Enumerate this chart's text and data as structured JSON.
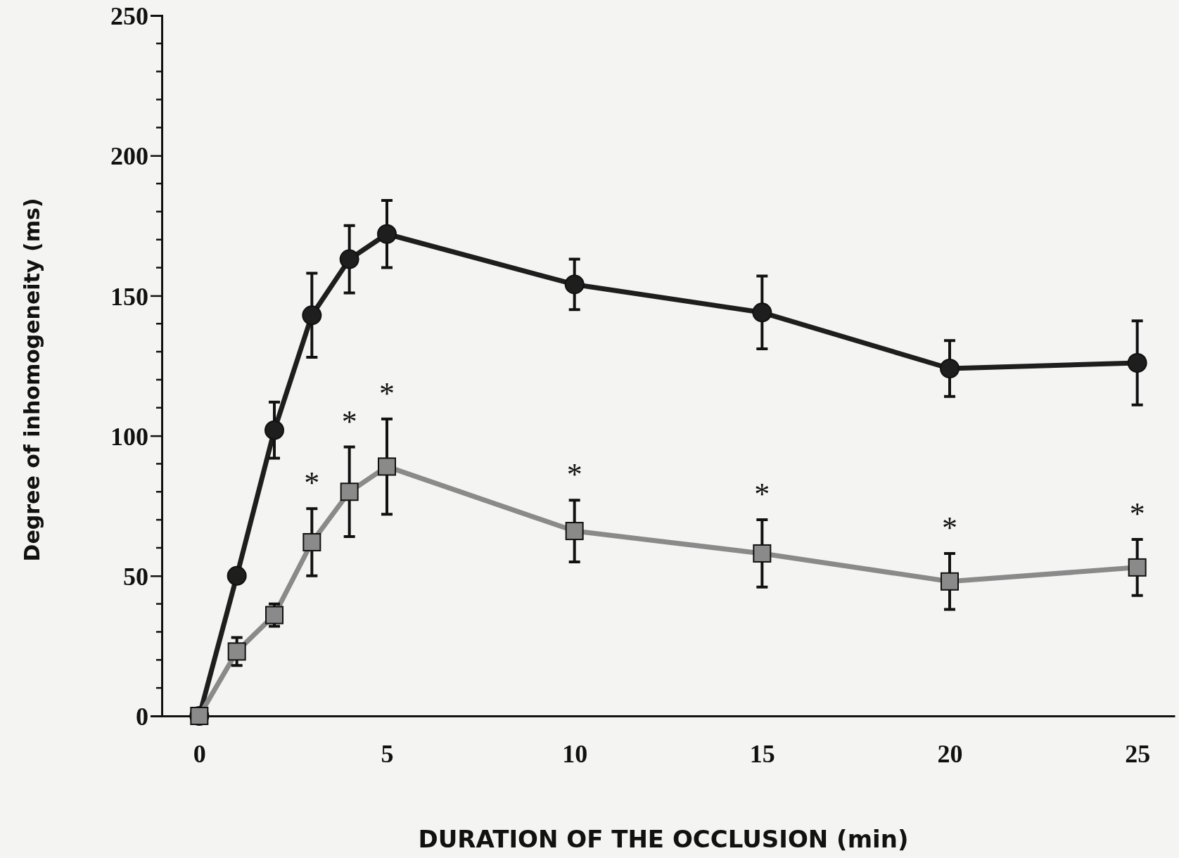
{
  "chart_data": {
    "type": "line",
    "xlabel": "DURATION OF THE OCCLUSION (min)",
    "ylabel": "Degree of inhomogeneity (ms)",
    "x": [
      0,
      1,
      2,
      3,
      4,
      5,
      10,
      15,
      20,
      25
    ],
    "series": [
      {
        "color": "#1e1e1e",
        "marker": "circle",
        "values": [
          0,
          50,
          102,
          143,
          163,
          172,
          154,
          144,
          124,
          126
        ],
        "errors": [
          null,
          null,
          10,
          15,
          12,
          12,
          9,
          13,
          10,
          15
        ]
      },
      {
        "color": "#8a8a8a",
        "marker": "square",
        "values": [
          0,
          23,
          36,
          62,
          80,
          89,
          66,
          58,
          48,
          53
        ],
        "errors": [
          null,
          5,
          4,
          12,
          16,
          17,
          11,
          12,
          10,
          10
        ]
      }
    ],
    "xlim": [
      -1,
      26
    ],
    "xticks": [
      0,
      5,
      10,
      15,
      20,
      25
    ],
    "ylim": [
      0,
      250
    ],
    "yticks": [
      0,
      {
        "value": 10,
        "label": null
      },
      {
        "value": 20,
        "label": null
      },
      {
        "value": 30,
        "label": null
      },
      {
        "value": 40,
        "label": null
      },
      50,
      {
        "value": 60,
        "label": null
      },
      {
        "value": 70,
        "label": null
      },
      {
        "value": 80,
        "label": null
      },
      {
        "value": 90,
        "label": null
      },
      100,
      {
        "value": 110,
        "label": null
      },
      {
        "value": 120,
        "label": null
      },
      {
        "value": 130,
        "label": null
      },
      {
        "value": 140,
        "label": null
      },
      150,
      {
        "value": 160,
        "label": null
      },
      {
        "value": 170,
        "label": null
      },
      {
        "value": 180,
        "label": null
      },
      {
        "value": 190,
        "label": null
      },
      200,
      {
        "value": 210,
        "label": null
      },
      {
        "value": 220,
        "label": null
      },
      {
        "value": 230,
        "label": null
      },
      {
        "value": 240,
        "label": null
      },
      250
    ],
    "annotations": [
      "*",
      "*",
      "*",
      "*",
      "*",
      "*",
      "*"
    ],
    "grid": false,
    "line_style": "solid"
  }
}
